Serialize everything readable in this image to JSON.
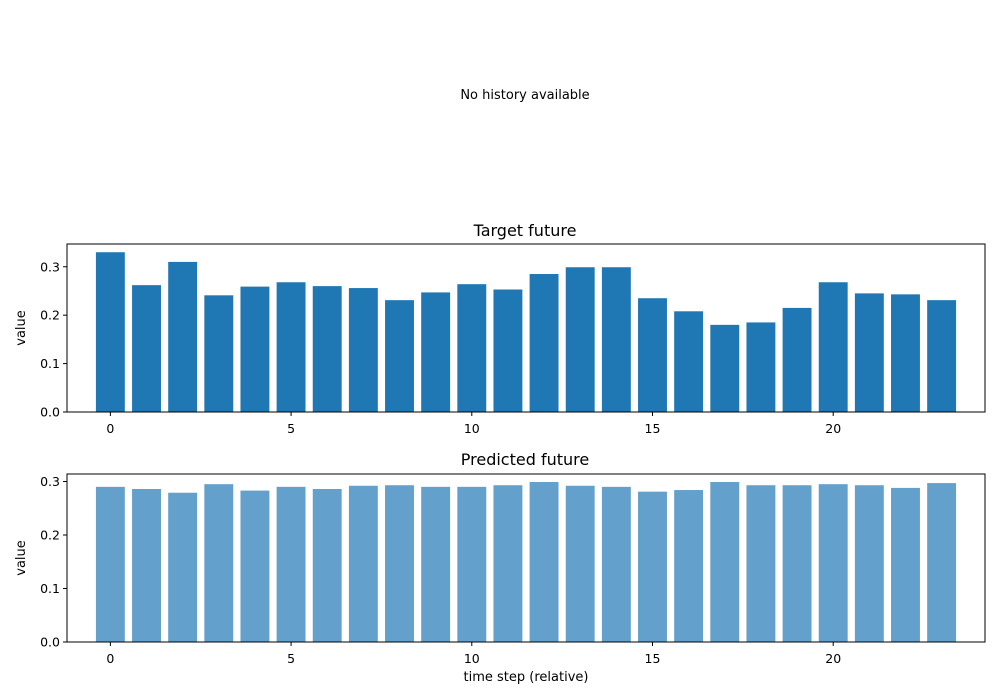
{
  "chart_data": [
    {
      "type": "text",
      "message": "No history available"
    },
    {
      "type": "bar",
      "title": "Target future",
      "xlabel": "",
      "ylabel": "value",
      "x": [
        0,
        1,
        2,
        3,
        4,
        5,
        6,
        7,
        8,
        9,
        10,
        11,
        12,
        13,
        14,
        15,
        16,
        17,
        18,
        19,
        20,
        21,
        22,
        23
      ],
      "values": [
        0.33,
        0.262,
        0.31,
        0.241,
        0.259,
        0.268,
        0.26,
        0.256,
        0.231,
        0.247,
        0.264,
        0.253,
        0.285,
        0.299,
        0.299,
        0.235,
        0.208,
        0.18,
        0.185,
        0.215,
        0.268,
        0.245,
        0.243,
        0.231
      ],
      "xlim": [
        -1.2,
        24.2
      ],
      "ylim": [
        0,
        0.347
      ],
      "xticks": [
        0,
        5,
        10,
        15,
        20
      ],
      "xtick_labels": [
        "0",
        "5",
        "10",
        "15",
        "20"
      ],
      "yticks": [
        0.0,
        0.1,
        0.2,
        0.3
      ],
      "ytick_labels": [
        "0.0",
        "0.1",
        "0.2",
        "0.3"
      ],
      "color": "#1f77b4"
    },
    {
      "type": "bar",
      "title": "Predicted future",
      "xlabel": "time step (relative)",
      "ylabel": "value",
      "x": [
        0,
        1,
        2,
        3,
        4,
        5,
        6,
        7,
        8,
        9,
        10,
        11,
        12,
        13,
        14,
        15,
        16,
        17,
        18,
        19,
        20,
        21,
        22,
        23
      ],
      "values": [
        0.29,
        0.286,
        0.279,
        0.295,
        0.283,
        0.29,
        0.286,
        0.292,
        0.293,
        0.29,
        0.29,
        0.293,
        0.299,
        0.292,
        0.29,
        0.281,
        0.284,
        0.299,
        0.293,
        0.293,
        0.295,
        0.293,
        0.288,
        0.297
      ],
      "xlim": [
        -1.2,
        24.2
      ],
      "ylim": [
        0,
        0.314
      ],
      "xticks": [
        0,
        5,
        10,
        15,
        20
      ],
      "xtick_labels": [
        "0",
        "5",
        "10",
        "15",
        "20"
      ],
      "yticks": [
        0.0,
        0.1,
        0.2,
        0.3
      ],
      "ytick_labels": [
        "0.0",
        "0.1",
        "0.2",
        "0.3"
      ],
      "color": "#63a0cb"
    }
  ]
}
